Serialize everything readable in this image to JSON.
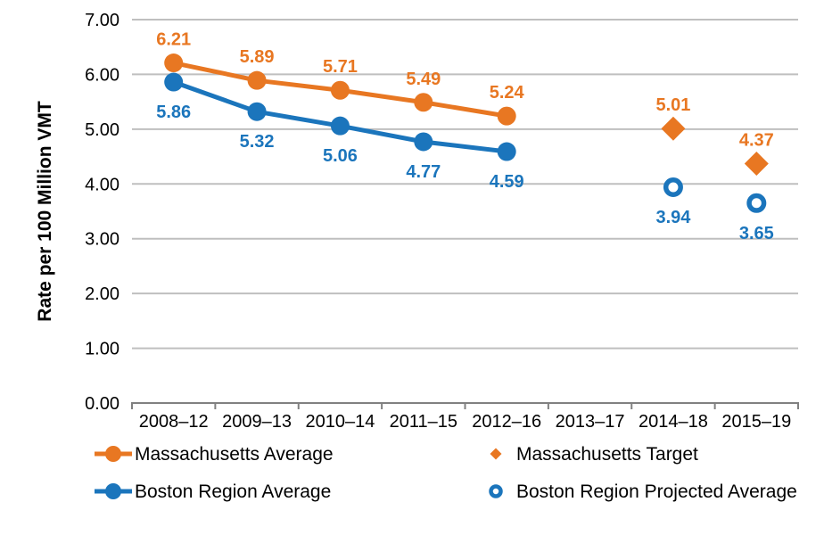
{
  "page": {
    "background": "#FFFFFF"
  },
  "colors": {
    "grid": "#BFBFBF",
    "axis": "#808080",
    "text": "#000000",
    "massachusetts_orange": "#E87722",
    "boston_blue": "#1B75BC"
  },
  "chart_data": {
    "type": "line",
    "title": "",
    "xlabel": "",
    "ylabel": "Rate per 100 Million VMT",
    "ylim": [
      0,
      7
    ],
    "grid": true,
    "legend_position": "bottom",
    "ytick_values": [
      0,
      1,
      2,
      3,
      4,
      5,
      6,
      7
    ],
    "ytick_labels": [
      "0.00",
      "1.00",
      "2.00",
      "3.00",
      "4.00",
      "5.00",
      "6.00",
      "7.00"
    ],
    "categories": [
      "2008–12",
      "2009–13",
      "2010–14",
      "2011–15",
      "2012–16",
      "2013–17",
      "2014–18",
      "2015–19"
    ],
    "series": [
      {
        "name": "Massachusetts Average",
        "slug": "massachusetts-average",
        "line": true,
        "marker": "circle",
        "color": "#E87722",
        "label_position": "above",
        "values": [
          6.21,
          5.89,
          5.71,
          5.49,
          5.24,
          null,
          null,
          null
        ]
      },
      {
        "name": "Boston Region Average",
        "slug": "boston-region-average",
        "line": true,
        "marker": "circle",
        "color": "#1B75BC",
        "label_position": "below",
        "values": [
          5.86,
          5.32,
          5.06,
          4.77,
          4.59,
          null,
          null,
          null
        ]
      },
      {
        "name": "Massachusetts Target",
        "slug": "massachusetts-target",
        "line": false,
        "marker": "diamond",
        "color": "#E87722",
        "label_position": "above",
        "values": [
          null,
          null,
          null,
          null,
          null,
          null,
          5.01,
          4.37
        ]
      },
      {
        "name": "Boston Region Projected Average",
        "slug": "boston-region-projected-average",
        "line": false,
        "marker": "open-circle",
        "color": "#1B75BC",
        "label_position": "below",
        "values": [
          null,
          null,
          null,
          null,
          null,
          null,
          3.94,
          3.65
        ]
      }
    ]
  }
}
